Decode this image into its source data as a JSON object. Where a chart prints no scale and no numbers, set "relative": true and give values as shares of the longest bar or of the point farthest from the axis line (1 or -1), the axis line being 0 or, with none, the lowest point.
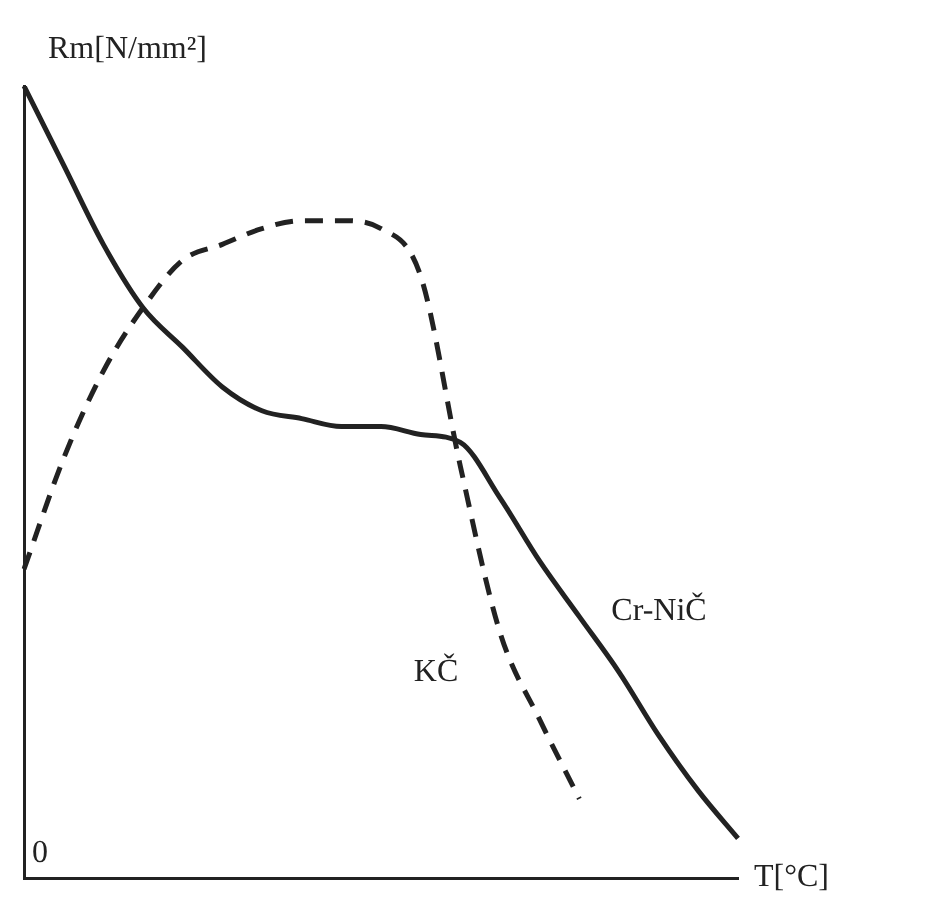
{
  "chart_data": {
    "type": "line",
    "relative": true,
    "xlabel": "T[°C]",
    "ylabel": "Rm[N/mm²]",
    "annotations": [
      "0"
    ],
    "legend": false,
    "grid": false,
    "marker": "none",
    "categories": [
      null,
      null,
      null,
      null,
      null,
      null,
      null,
      null,
      null,
      null,
      null,
      null,
      null,
      null,
      null,
      null,
      null,
      null,
      null
    ],
    "series": [
      {
        "name": "Cr-NiČ",
        "color": "#222222",
        "line_style": "solid",
        "values": [
          1,
          0.9,
          0.8,
          0.72,
          0.67,
          0.62,
          0.59,
          0.58,
          0.57,
          0.57,
          0.56,
          0.55,
          0.48,
          0.4,
          0.33,
          0.26,
          0.18,
          0.11,
          0.05
        ]
      },
      {
        "name": "KČ",
        "color": "#222222",
        "line_style": "dashed",
        "values": [
          0.39,
          0.53,
          0.64,
          0.72,
          0.78,
          0.8,
          0.82,
          0.83,
          0.83,
          0.82,
          0.76,
          0.52,
          0.31,
          0.2,
          0.1,
          null,
          null,
          null,
          null
        ]
      }
    ]
  }
}
